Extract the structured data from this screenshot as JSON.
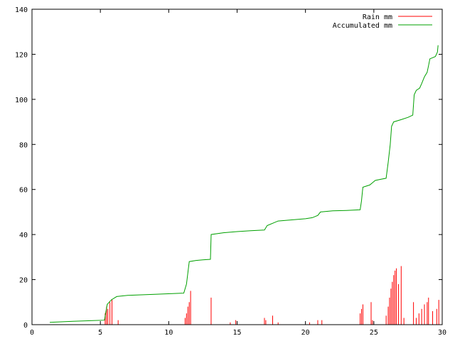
{
  "chart_data": {
    "type": "bar",
    "title": "",
    "xlabel": "",
    "ylabel": "",
    "xlim": [
      0,
      30
    ],
    "ylim": [
      0,
      140
    ],
    "x_ticks": [
      0,
      5,
      10,
      15,
      20,
      25,
      30
    ],
    "y_ticks": [
      0,
      20,
      40,
      60,
      80,
      100,
      120,
      140
    ],
    "grid": false,
    "legend": "top-right",
    "series": [
      {
        "name": "Rain mm",
        "type": "impulse",
        "color": "#ff0000",
        "points": [
          [
            5.35,
            5
          ],
          [
            5.45,
            8
          ],
          [
            5.55,
            7
          ],
          [
            5.7,
            10
          ],
          [
            5.85,
            11
          ],
          [
            6.3,
            2
          ],
          [
            11.2,
            3
          ],
          [
            11.3,
            5
          ],
          [
            11.4,
            8
          ],
          [
            11.5,
            10
          ],
          [
            11.6,
            15
          ],
          [
            13.1,
            12
          ],
          [
            14.5,
            1
          ],
          [
            14.9,
            2
          ],
          [
            17.0,
            3
          ],
          [
            17.1,
            2
          ],
          [
            17.6,
            4
          ],
          [
            18.0,
            1
          ],
          [
            20.3,
            1
          ],
          [
            20.9,
            2
          ],
          [
            21.2,
            2
          ],
          [
            24.0,
            5
          ],
          [
            24.1,
            7
          ],
          [
            24.2,
            9
          ],
          [
            24.8,
            10
          ],
          [
            24.9,
            2
          ],
          [
            25.9,
            4
          ],
          [
            26.05,
            8
          ],
          [
            26.15,
            12
          ],
          [
            26.25,
            16
          ],
          [
            26.35,
            19
          ],
          [
            26.45,
            22
          ],
          [
            26.55,
            24
          ],
          [
            26.65,
            25
          ],
          [
            26.8,
            18
          ],
          [
            27.0,
            26
          ],
          [
            27.2,
            3
          ],
          [
            27.9,
            10
          ],
          [
            28.1,
            3
          ],
          [
            28.3,
            5
          ],
          [
            28.5,
            7
          ],
          [
            28.7,
            9
          ],
          [
            28.9,
            10
          ],
          [
            29.0,
            12
          ],
          [
            29.3,
            6
          ],
          [
            29.6,
            7
          ],
          [
            29.75,
            11
          ]
        ]
      },
      {
        "name": "Accumulated mm",
        "type": "line",
        "color": "#00a000",
        "points": [
          [
            1.3,
            1
          ],
          [
            3.0,
            1.5
          ],
          [
            5.3,
            2
          ],
          [
            5.5,
            9
          ],
          [
            5.8,
            11
          ],
          [
            6.2,
            12.5
          ],
          [
            7.0,
            13
          ],
          [
            9.0,
            13.5
          ],
          [
            11.1,
            14
          ],
          [
            11.3,
            18
          ],
          [
            11.5,
            28
          ],
          [
            12.0,
            28.5
          ],
          [
            12.5,
            28.8
          ],
          [
            13.05,
            29
          ],
          [
            13.1,
            40
          ],
          [
            14.0,
            40.8
          ],
          [
            15.0,
            41.3
          ],
          [
            16.0,
            41.7
          ],
          [
            17.0,
            42
          ],
          [
            17.2,
            44
          ],
          [
            17.6,
            45
          ],
          [
            18.0,
            46
          ],
          [
            19.0,
            46.5
          ],
          [
            20.0,
            47
          ],
          [
            20.5,
            47.5
          ],
          [
            20.9,
            48.5
          ],
          [
            21.1,
            50
          ],
          [
            22.0,
            50.5
          ],
          [
            23.0,
            50.7
          ],
          [
            24.0,
            51
          ],
          [
            24.1,
            55
          ],
          [
            24.2,
            61
          ],
          [
            24.7,
            62
          ],
          [
            24.9,
            63
          ],
          [
            25.1,
            64
          ],
          [
            25.5,
            64.5
          ],
          [
            25.9,
            65
          ],
          [
            26.05,
            72
          ],
          [
            26.2,
            80
          ],
          [
            26.3,
            88
          ],
          [
            26.45,
            90
          ],
          [
            27.0,
            91
          ],
          [
            27.5,
            92
          ],
          [
            27.85,
            93
          ],
          [
            27.95,
            102
          ],
          [
            28.1,
            104
          ],
          [
            28.35,
            105
          ],
          [
            28.5,
            107
          ],
          [
            28.7,
            110
          ],
          [
            28.9,
            112
          ],
          [
            29.0,
            115
          ],
          [
            29.1,
            118
          ],
          [
            29.5,
            119
          ],
          [
            29.65,
            121
          ],
          [
            29.7,
            124
          ]
        ]
      }
    ]
  }
}
